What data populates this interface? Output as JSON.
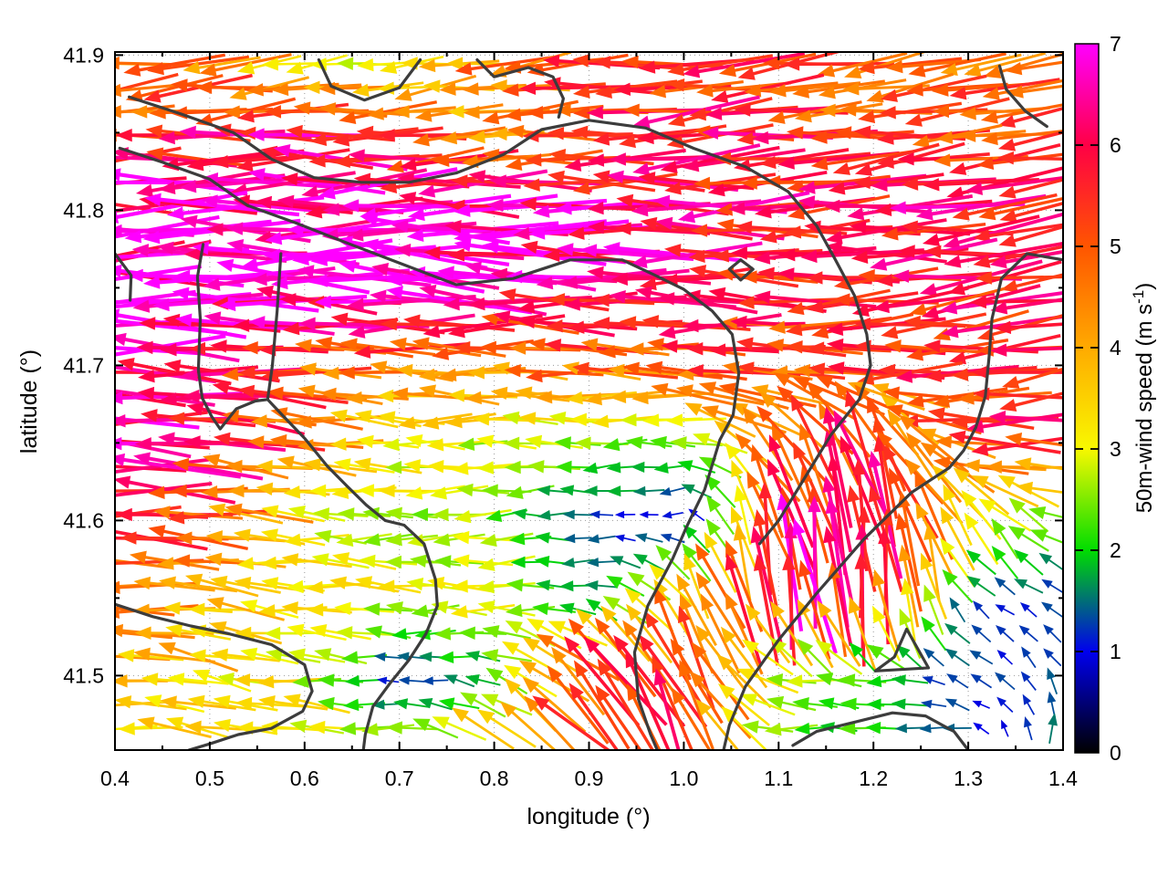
{
  "figure": {
    "xlabel": "longitude (°)",
    "ylabel": "latitude (°)",
    "colorbar_label_prefix": "50m-wind speed (m s",
    "colorbar_label_sup": "-1",
    "colorbar_label_suffix": ")",
    "x_tick_labels": [
      "0.4",
      "0.5",
      "0.6",
      "0.7",
      "0.8",
      "0.9",
      "1.0",
      "1.1",
      "1.2",
      "1.3",
      "1.4"
    ],
    "y_tick_labels": [
      "41.5",
      "41.6",
      "41.7",
      "41.8",
      "41.9"
    ],
    "colorbar_tick_labels": [
      "0",
      "1",
      "2",
      "3",
      "4",
      "5",
      "6",
      "7"
    ]
  },
  "chart_data": {
    "type": "quiver",
    "title": "",
    "xlabel": "longitude (°)",
    "ylabel": "latitude (°)",
    "xlim": [
      0.4,
      1.4
    ],
    "ylim": [
      41.452,
      41.902
    ],
    "x_ticks": [
      0.4,
      0.5,
      0.6,
      0.7,
      0.8,
      0.9,
      1.0,
      1.1,
      1.2,
      1.3,
      1.4
    ],
    "y_ticks": [
      41.5,
      41.6,
      41.7,
      41.8,
      41.9
    ],
    "x_minor_ticks": [
      0.45,
      0.55,
      0.65,
      0.75,
      0.85,
      0.95,
      1.05,
      1.15,
      1.25,
      1.35
    ],
    "y_minor_ticks": [
      41.55,
      41.65,
      41.75,
      41.85
    ],
    "grid_on": true,
    "background": "#ffffff",
    "boundary_color": "#3c3c3c",
    "grid_line_color": "#9a9a9a",
    "colorbar": {
      "min": 0,
      "max": 7,
      "ticks": [
        0,
        1,
        2,
        3,
        4,
        5,
        6,
        7
      ],
      "palette": [
        [
          0,
          "#000000"
        ],
        [
          1,
          "#0000ee"
        ],
        [
          2,
          "#00dd00"
        ],
        [
          3,
          "#f8f800"
        ],
        [
          4,
          "#ffaa00"
        ],
        [
          5,
          "#ff5500"
        ],
        [
          6,
          "#ff0045"
        ],
        [
          7,
          "#ff00ff"
        ]
      ]
    },
    "wind_grid": {
      "comment": "coarse 50m wind field read from figure; u eastward, v northward (m/s); rows ordered north(41.90) to south(41.45)",
      "lon": [
        0.4,
        0.5,
        0.6,
        0.7,
        0.8,
        0.9,
        1.0,
        1.1,
        1.2,
        1.3,
        1.4
      ],
      "lat": [
        41.9,
        41.85,
        41.8,
        41.75,
        41.7,
        41.65,
        41.6,
        41.55,
        41.5,
        41.45
      ],
      "u": [
        [
          -4.2,
          -4.5,
          -3.0,
          -2.2,
          -4.5,
          -5.2,
          -5.0,
          -5.5,
          -4.4,
          -4.6,
          -5.0
        ],
        [
          -5.0,
          -5.5,
          -6.2,
          -6.0,
          -3.5,
          -5.5,
          -6.0,
          -5.8,
          -5.0,
          -4.8,
          -5.0
        ],
        [
          -6.5,
          -7.0,
          -7.0,
          -6.8,
          -7.0,
          -6.5,
          -6.0,
          -5.8,
          -6.3,
          -6.0,
          -5.8
        ],
        [
          -7.0,
          -7.0,
          -7.0,
          -7.0,
          -6.8,
          -6.5,
          -6.0,
          -5.6,
          -5.5,
          -5.6,
          -5.7
        ],
        [
          -6.8,
          -6.2,
          -5.0,
          -4.5,
          -4.5,
          -4.8,
          -5.0,
          -5.2,
          -5.4,
          -5.5,
          -5.9
        ],
        [
          -6.5,
          -6.0,
          -4.5,
          -3.2,
          -2.8,
          -2.5,
          -2.4,
          -3.2,
          -1.9,
          -5.0,
          -5.5
        ],
        [
          -5.5,
          -5.0,
          -3.2,
          -2.8,
          -2.5,
          -1.2,
          -0.8,
          -1.4,
          -1.1,
          -1.8,
          -2.3
        ],
        [
          -4.5,
          -4.0,
          -3.3,
          -3.0,
          -3.0,
          -1.6,
          -2.3,
          -0.8,
          -0.5,
          -1.0,
          -1.0
        ],
        [
          -3.6,
          -3.5,
          -3.0,
          -0.9,
          -1.8,
          -3.9,
          -2.5,
          -3.0,
          -2.0,
          -1.0,
          -0.7
        ],
        [
          -3.0,
          -3.3,
          -3.5,
          -3.0,
          -3.6,
          -3.3,
          -1.9,
          -2.2,
          -2.0,
          -1.2,
          0.9
        ]
      ],
      "v": [
        [
          -0.6,
          -0.5,
          -0.3,
          -0.4,
          -0.6,
          -0.5,
          -0.4,
          -0.4,
          -0.8,
          -0.6,
          -0.5
        ],
        [
          -0.3,
          -0.3,
          -0.2,
          -0.3,
          -0.3,
          -0.4,
          -0.3,
          -0.3,
          -0.6,
          -0.5,
          -0.3
        ],
        [
          -0.2,
          -0.1,
          0.0,
          0.0,
          0.1,
          0.0,
          -0.1,
          -0.2,
          -0.4,
          -0.6,
          -0.5
        ],
        [
          0.0,
          0.0,
          0.1,
          0.1,
          0.2,
          0.2,
          0.2,
          0.1,
          -0.2,
          -0.6,
          -0.8
        ],
        [
          0.1,
          0.2,
          0.3,
          0.2,
          0.2,
          0.2,
          0.1,
          0.0,
          -0.4,
          -0.7,
          -0.8
        ],
        [
          0.2,
          0.4,
          0.3,
          0.1,
          0.0,
          -0.1,
          -0.1,
          3.8,
          5.2,
          0.4,
          -0.2
        ],
        [
          0.2,
          0.3,
          0.1,
          0.0,
          -0.1,
          -0.1,
          -0.1,
          5.3,
          6.4,
          3.0,
          0.9
        ],
        [
          0.3,
          0.5,
          0.2,
          0.1,
          -0.1,
          -0.1,
          3.3,
          6.5,
          6.0,
          0.8,
          0.6
        ],
        [
          0.4,
          0.6,
          0.3,
          0.0,
          0.4,
          3.9,
          5.4,
          0.4,
          0.0,
          0.6,
          1.1
        ],
        [
          0.3,
          0.5,
          0.4,
          0.2,
          2.1,
          3.7,
          5.2,
          -0.1,
          -0.2,
          0.1,
          2.3
        ]
      ]
    },
    "boundary_lines": [
      [
        [
          0.415,
          41.873
        ],
        [
          0.47,
          41.862
        ],
        [
          0.525,
          41.85
        ],
        [
          0.565,
          41.833
        ],
        [
          0.61,
          41.821
        ],
        [
          0.66,
          41.818
        ],
        [
          0.71,
          41.818
        ],
        [
          0.76,
          41.824
        ],
        [
          0.81,
          41.836
        ],
        [
          0.85,
          41.852
        ],
        [
          0.9,
          41.858
        ],
        [
          0.96,
          41.853
        ],
        [
          1.01,
          41.84
        ],
        [
          1.065,
          41.828
        ],
        [
          1.11,
          41.812
        ],
        [
          1.14,
          41.79
        ],
        [
          1.16,
          41.768
        ],
        [
          1.18,
          41.745
        ],
        [
          1.193,
          41.72
        ],
        [
          1.197,
          41.7
        ],
        [
          1.185,
          41.678
        ],
        [
          1.155,
          41.655
        ],
        [
          1.125,
          41.625
        ],
        [
          1.1,
          41.6
        ],
        [
          1.08,
          41.585
        ]
      ],
      [
        [
          0.405,
          41.84
        ],
        [
          0.45,
          41.831
        ],
        [
          0.5,
          41.82
        ],
        [
          0.54,
          41.803
        ],
        [
          0.59,
          41.792
        ],
        [
          0.64,
          41.78
        ],
        [
          0.7,
          41.766
        ],
        [
          0.76,
          41.752
        ],
        [
          0.82,
          41.756
        ],
        [
          0.88,
          41.768
        ],
        [
          0.935,
          41.768
        ],
        [
          0.97,
          41.758
        ],
        [
          1.0,
          41.749
        ],
        [
          1.03,
          41.735
        ],
        [
          1.051,
          41.72
        ],
        [
          1.058,
          41.695
        ],
        [
          1.052,
          41.668
        ],
        [
          1.038,
          41.652
        ],
        [
          1.022,
          41.62
        ],
        [
          1.003,
          41.596
        ],
        [
          0.988,
          41.575
        ],
        [
          0.962,
          41.545
        ],
        [
          0.948,
          41.515
        ],
        [
          0.952,
          41.485
        ],
        [
          0.965,
          41.462
        ],
        [
          0.972,
          41.452
        ]
      ],
      [
        [
          0.493,
          41.778
        ],
        [
          0.487,
          41.757
        ],
        [
          0.49,
          41.73
        ],
        [
          0.488,
          41.697
        ],
        [
          0.492,
          41.679
        ],
        [
          0.502,
          41.667
        ],
        [
          0.511,
          41.659
        ],
        [
          0.528,
          41.672
        ],
        [
          0.548,
          41.677
        ],
        [
          0.561,
          41.678
        ],
        [
          0.566,
          41.7
        ],
        [
          0.571,
          41.735
        ],
        [
          0.575,
          41.772
        ]
      ],
      [
        [
          0.561,
          41.678
        ],
        [
          0.578,
          41.667
        ],
        [
          0.6,
          41.653
        ],
        [
          0.624,
          41.635
        ],
        [
          0.645,
          41.622
        ],
        [
          0.665,
          41.61
        ],
        [
          0.685,
          41.6
        ],
        [
          0.705,
          41.597
        ],
        [
          0.726,
          41.585
        ],
        [
          0.738,
          41.562
        ],
        [
          0.74,
          41.545
        ],
        [
          0.728,
          41.527
        ],
        [
          0.71,
          41.51
        ],
        [
          0.69,
          41.495
        ],
        [
          0.672,
          41.48
        ],
        [
          0.664,
          41.462
        ],
        [
          0.662,
          41.452
        ]
      ],
      [
        [
          0.4,
          41.546
        ],
        [
          0.44,
          41.538
        ],
        [
          0.48,
          41.532
        ],
        [
          0.52,
          41.527
        ],
        [
          0.565,
          41.52
        ],
        [
          0.6,
          41.507
        ],
        [
          0.608,
          41.49
        ],
        [
          0.598,
          41.477
        ],
        [
          0.565,
          41.466
        ],
        [
          0.53,
          41.462
        ],
        [
          0.5,
          41.456
        ],
        [
          0.478,
          41.452
        ]
      ],
      [
        [
          1.4,
          41.768
        ],
        [
          1.362,
          41.772
        ],
        [
          1.335,
          41.756
        ],
        [
          1.325,
          41.73
        ],
        [
          1.322,
          41.706
        ],
        [
          1.318,
          41.68
        ],
        [
          1.308,
          41.66
        ],
        [
          1.295,
          41.645
        ],
        [
          1.28,
          41.634
        ],
        [
          1.26,
          41.626
        ],
        [
          1.24,
          41.618
        ],
        [
          1.19,
          41.588
        ],
        [
          1.14,
          41.553
        ],
        [
          1.1,
          41.523
        ],
        [
          1.065,
          41.493
        ],
        [
          1.048,
          41.468
        ],
        [
          1.042,
          41.452
        ]
      ],
      [
        [
          1.115,
          41.455
        ],
        [
          1.14,
          41.464
        ],
        [
          1.18,
          41.47
        ],
        [
          1.22,
          41.476
        ],
        [
          1.255,
          41.474
        ],
        [
          1.285,
          41.464
        ],
        [
          1.3,
          41.452
        ]
      ],
      [
        [
          1.202,
          41.503
        ],
        [
          1.258,
          41.505
        ],
        [
          1.235,
          41.53
        ],
        [
          1.222,
          41.512
        ],
        [
          1.202,
          41.503
        ]
      ],
      [
        [
          0.615,
          41.897
        ],
        [
          0.628,
          41.88
        ],
        [
          0.663,
          41.871
        ],
        [
          0.7,
          41.879
        ],
        [
          0.722,
          41.897
        ]
      ],
      [
        [
          1.333,
          41.893
        ],
        [
          1.34,
          41.878
        ],
        [
          1.36,
          41.864
        ],
        [
          1.383,
          41.854
        ]
      ],
      [
        [
          1.048,
          41.762
        ],
        [
          1.06,
          41.768
        ],
        [
          1.073,
          41.762
        ],
        [
          1.06,
          41.755
        ],
        [
          1.048,
          41.762
        ]
      ],
      [
        [
          0.4,
          41.772
        ],
        [
          0.417,
          41.758
        ],
        [
          0.416,
          41.742
        ]
      ],
      [
        [
          0.782,
          41.897
        ],
        [
          0.8,
          41.886
        ],
        [
          0.836,
          41.892
        ],
        [
          0.862,
          41.886
        ],
        [
          0.873,
          41.872
        ],
        [
          0.868,
          41.86
        ]
      ]
    ]
  }
}
